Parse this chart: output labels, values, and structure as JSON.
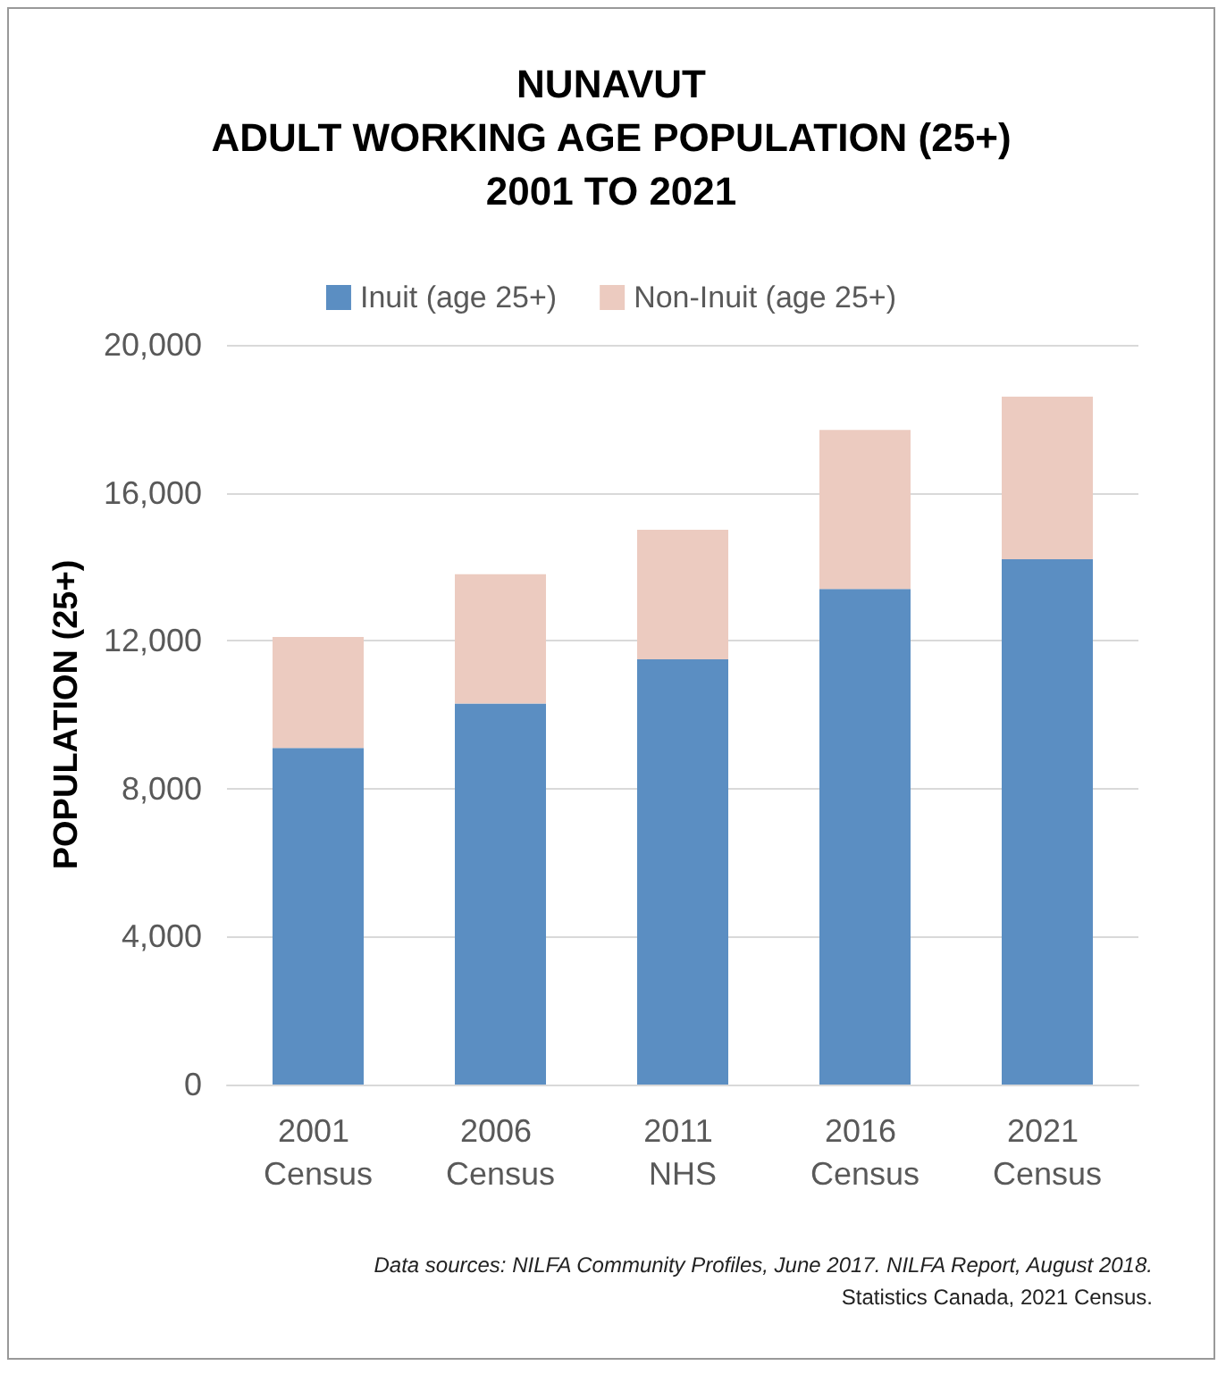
{
  "chart_data": {
    "type": "bar",
    "title": "NUNAVUT\nADULT WORKING AGE POPULATION (25+)\n2001 TO 2021",
    "ylabel": "POPULATION (25+)",
    "categories": [
      "2001 Census",
      "2006 Census",
      "2011 NHS",
      "2016 Census",
      "2021 Census"
    ],
    "stacked": true,
    "series": [
      {
        "name": "Inuit (age 25+)",
        "color": "#5b8ec2",
        "values": [
          9100,
          10300,
          11500,
          13400,
          14200
        ]
      },
      {
        "name": "Non-Inuit (age 25+)",
        "color": "#eccbc0",
        "values": [
          3000,
          3500,
          3500,
          4300,
          4400
        ]
      }
    ],
    "ylim": [
      0,
      20000
    ],
    "yticks": [
      {
        "value": 0,
        "label": "0"
      },
      {
        "value": 4000,
        "label": "4,000"
      },
      {
        "value": 8000,
        "label": "8,000"
      },
      {
        "value": 12000,
        "label": "12,000"
      },
      {
        "value": 16000,
        "label": "16,000"
      },
      {
        "value": 20000,
        "label": "20,000"
      }
    ],
    "grid": "y",
    "legend": "top",
    "annotations": [
      "Data sources: NILFA Community Profiles, June 2017. NILFA Report, August 2018.",
      "Statistics Canada, 2021 Census."
    ]
  }
}
